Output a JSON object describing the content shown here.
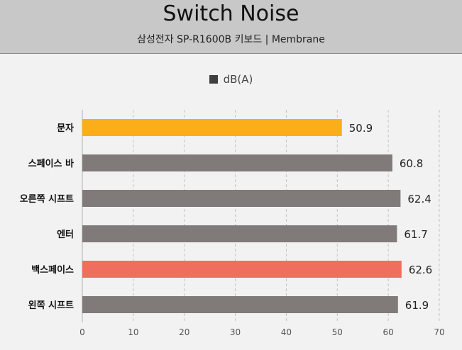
{
  "chart_data": {
    "type": "bar",
    "orientation": "horizontal",
    "title": "Switch Noise",
    "subtitle": "삼성전자 SP-R1600B 키보드  |  Membrane",
    "categories": [
      "문자",
      "스페이스 바",
      "오른쪽 시프트",
      "엔터",
      "백스페이스",
      "왼쪽 시프트"
    ],
    "series": [
      {
        "name": "dB(A)",
        "values": [
          50.9,
          60.8,
          62.4,
          61.7,
          62.6,
          61.9
        ]
      }
    ],
    "bar_colors": [
      "#fbad1a",
      "#807b79",
      "#807b79",
      "#807b79",
      "#f06e5e",
      "#807b79"
    ],
    "legend_color": "#404040",
    "xlim": [
      0,
      70
    ],
    "xticks": [
      0,
      10,
      20,
      30,
      40,
      50,
      60,
      70
    ],
    "grid": "vertical dashed",
    "legend_position": "top"
  }
}
